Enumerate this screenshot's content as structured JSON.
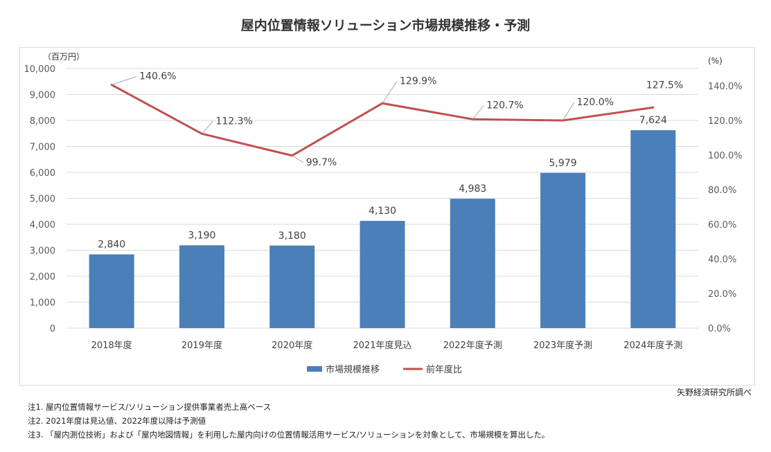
{
  "chart_data": {
    "type": "bar+line",
    "title": "屋内位置情報ソリューション市場規模推移・予測",
    "y_left_unit": "（百万円）",
    "y_right_unit": "(%)",
    "categories": [
      "2018年度",
      "2019年度",
      "2020年度",
      "2021年度見込",
      "2022年度予測",
      "2023年度予測",
      "2024年度予測"
    ],
    "series": [
      {
        "name": "市場規模推移",
        "type": "bar",
        "axis": "left",
        "color": "#4a7fb8",
        "values": [
          2840,
          3190,
          3180,
          4130,
          4983,
          5979,
          7624
        ],
        "labels": [
          "2,840",
          "3,190",
          "3,180",
          "4,130",
          "4,983",
          "5,979",
          "7,624"
        ]
      },
      {
        "name": "前年度比",
        "type": "line",
        "axis": "right",
        "color": "#c0504d",
        "values": [
          140.6,
          112.3,
          99.7,
          129.9,
          120.7,
          120.0,
          127.5
        ],
        "labels": [
          "140.6%",
          "112.3%",
          "99.7%",
          "129.9%",
          "120.7%",
          "120.0%",
          "127.5%"
        ]
      }
    ],
    "y_left_ticks": [
      "0",
      "1,000",
      "2,000",
      "3,000",
      "4,000",
      "5,000",
      "6,000",
      "7,000",
      "8,000",
      "9,000",
      "10,000"
    ],
    "ylim_left": [
      0,
      10000
    ],
    "y_right_ticks": [
      "0.0%",
      "20.0%",
      "40.0%",
      "60.0%",
      "80.0%",
      "100.0%",
      "120.0%",
      "140.0%"
    ],
    "ylim_right": [
      0,
      150
    ],
    "grid": true,
    "legend": "bottom"
  },
  "source": "矢野経済研究所調べ",
  "notes": [
    "注1.  屋内位置情報サービス/ソリューション提供事業者売上高ベース",
    "注2.  2021年度は見込値、2022年度以降は予測値",
    "注3.  「屋内測位技術」および「屋内地図情報」を利用した屋内向けの位置情報活用サービス/ソリューションを対象として、市場規模を算出した。"
  ]
}
